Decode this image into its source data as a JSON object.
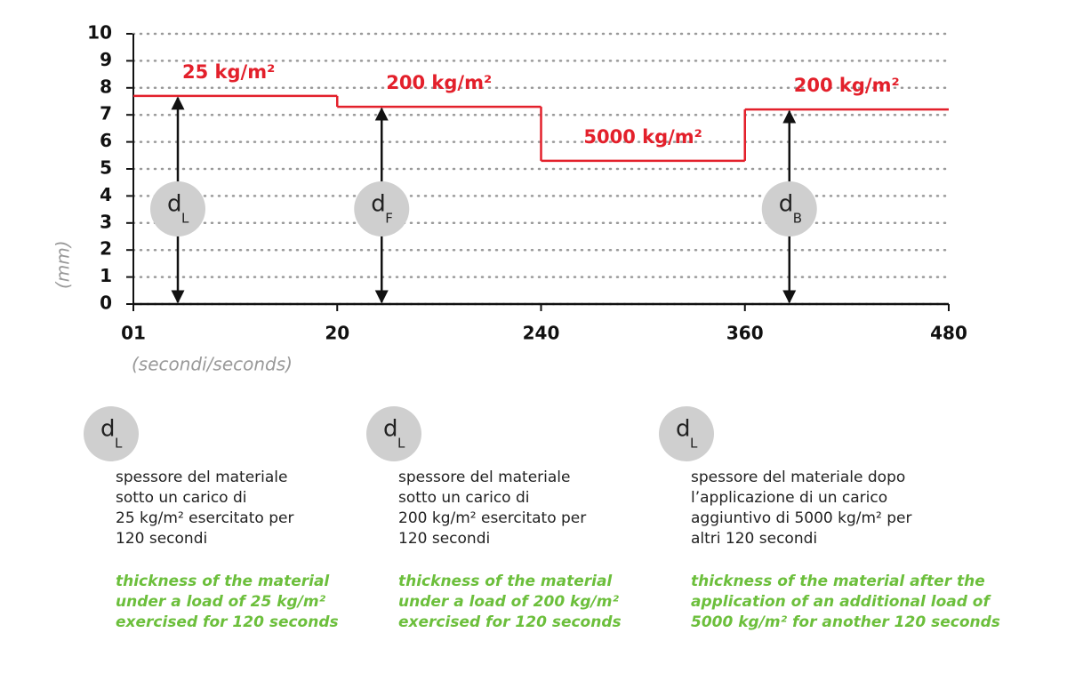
{
  "chart_data": {
    "type": "step",
    "y_label": "(mm)",
    "x_label": "(secondi/seconds)",
    "categories": [
      "01",
      "20",
      "240",
      "360",
      "480"
    ],
    "ylim": [
      0,
      10
    ],
    "yticks": [
      0,
      1,
      2,
      3,
      4,
      5,
      6,
      7,
      8,
      9,
      10
    ],
    "grid": true,
    "color": "#e3202b",
    "segments": [
      {
        "label": "25 kg/m²",
        "value": 7.7,
        "marker": {
          "letter": "d",
          "sub": "L"
        }
      },
      {
        "label": "200 kg/m²",
        "value": 7.3,
        "marker": {
          "letter": "d",
          "sub": "F"
        }
      },
      {
        "label": "5000 kg/m²",
        "value": 5.3
      },
      {
        "label": "200 kg/m²",
        "value": 7.2,
        "marker": {
          "letter": "d",
          "sub": "B"
        }
      }
    ]
  },
  "legend": [
    {
      "letter": "d",
      "sub": "L",
      "it": [
        "spessore del materiale",
        "sotto un carico di",
        "25 kg/m² esercitato per",
        "120 secondi"
      ],
      "en": [
        "thickness of the material",
        "under a load of 25 kg/m²",
        "exercised for 120 seconds"
      ]
    },
    {
      "letter": "d",
      "sub": "L",
      "it": [
        "spessore del materiale",
        "sotto un carico di",
        "200 kg/m² esercitato per",
        "120 secondi"
      ],
      "en": [
        "thickness of the material",
        "under a load of 200 kg/m²",
        "exercised for 120 seconds"
      ]
    },
    {
      "letter": "d",
      "sub": "L",
      "it": [
        "spessore del materiale dopo",
        "l’applicazione di un carico",
        "aggiuntivo di 5000 kg/m² per",
        "altri 120 secondi"
      ],
      "en": [
        "thickness of the material after the",
        "application of an additional load of",
        "5000 kg/m² for another 120 seconds"
      ]
    }
  ]
}
